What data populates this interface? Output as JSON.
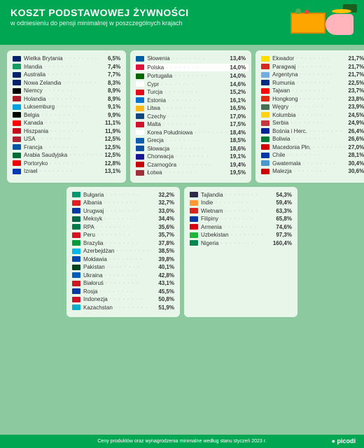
{
  "header": {
    "title": "KOSZT PODSTAWOWEJ ŻYWNOŚCI",
    "subtitle": "w odniesieniu do pensji minimalnej\nw poszczególnych krajach"
  },
  "footer": {
    "text": "Ceny produktów oraz wynagrodzenia minimalne według stanu styczeń 2023 r.",
    "logo": "picodi"
  },
  "panels": [
    [
      {
        "n": "Wielka Brytania",
        "v": "6,5%",
        "f": "#012169"
      },
      {
        "n": "Irlandia",
        "v": "7,4%",
        "f": "#169b62"
      },
      {
        "n": "Australia",
        "v": "7,7%",
        "f": "#012169"
      },
      {
        "n": "Nowa Zelandia",
        "v": "8,3%",
        "f": "#012169"
      },
      {
        "n": "Niemcy",
        "v": "8,9%",
        "f": "#000"
      },
      {
        "n": "Holandia",
        "v": "8,9%",
        "f": "#ae1c28"
      },
      {
        "n": "Luksemburg",
        "v": "9,1%",
        "f": "#00a1de"
      },
      {
        "n": "Belgia",
        "v": "9,9%",
        "f": "#000"
      },
      {
        "n": "Kanada",
        "v": "11,1%",
        "f": "#f00"
      },
      {
        "n": "Hiszpania",
        "v": "11,9%",
        "f": "#c60b1e"
      },
      {
        "n": "USA",
        "v": "12,5%",
        "f": "#b22234"
      },
      {
        "n": "Francja",
        "v": "12,5%",
        "f": "#0055a4"
      },
      {
        "n": "Arabia Saudyjska",
        "v": "12,5%",
        "f": "#006c35"
      },
      {
        "n": "Portoryko",
        "v": "12,8%",
        "f": "#ed0000"
      },
      {
        "n": "Izrael",
        "v": "13,1%",
        "f": "#0038b8"
      }
    ],
    [
      {
        "n": "Słowenia",
        "v": "13,4%",
        "f": "#005da4"
      },
      {
        "n": "Polska",
        "v": "14,0%",
        "f": "#dc143c",
        "hl": true
      },
      {
        "n": "Portugalia",
        "v": "14,0%",
        "f": "#006600"
      },
      {
        "n": "Cypr",
        "v": "14,6%",
        "f": "#fff"
      },
      {
        "n": "Turcja",
        "v": "15,2%",
        "f": "#e30a17"
      },
      {
        "n": "Estonia",
        "v": "16,1%",
        "f": "#0072ce"
      },
      {
        "n": "Litwa",
        "v": "16,5%",
        "f": "#fdb913"
      },
      {
        "n": "Czechy",
        "v": "17,0%",
        "f": "#11457e"
      },
      {
        "n": "Malta",
        "v": "17,5%",
        "f": "#cf142b"
      },
      {
        "n": "Korea Południowa",
        "v": "18,4%",
        "f": "#fff"
      },
      {
        "n": "Grecja",
        "v": "18,5%",
        "f": "#0d5eaf"
      },
      {
        "n": "Słowacja",
        "v": "18,6%",
        "f": "#0b4ea2"
      },
      {
        "n": "Chorwacja",
        "v": "19,1%",
        "f": "#171796"
      },
      {
        "n": "Czarnogóra",
        "v": "19,4%",
        "f": "#c40308"
      },
      {
        "n": "Łotwa",
        "v": "19,5%",
        "f": "#9e3039"
      }
    ],
    [
      {
        "n": "Ekwador",
        "v": "21,7%",
        "f": "#ffdd00"
      },
      {
        "n": "Paragwaj",
        "v": "21,7%",
        "f": "#d52b1e"
      },
      {
        "n": "Argentyna",
        "v": "21,7%",
        "f": "#74acdf"
      },
      {
        "n": "Rumunia",
        "v": "22,5%",
        "f": "#002b7f"
      },
      {
        "n": "Tajwan",
        "v": "23,7%",
        "f": "#fe0000"
      },
      {
        "n": "Hongkong",
        "v": "23,8%",
        "f": "#de2910"
      },
      {
        "n": "Węgry",
        "v": "23,9%",
        "f": "#477050"
      },
      {
        "n": "Kolumbia",
        "v": "24,5%",
        "f": "#fcd116"
      },
      {
        "n": "Serbia",
        "v": "24,9%",
        "f": "#c6363c"
      },
      {
        "n": "Bośnia i Herc.",
        "v": "26,4%",
        "f": "#002395"
      },
      {
        "n": "Boliwia",
        "v": "26,6%",
        "f": "#007934"
      },
      {
        "n": "Macedonia Płn.",
        "v": "27,0%",
        "f": "#d20000"
      },
      {
        "n": "Chile",
        "v": "28,1%",
        "f": "#0039a6"
      },
      {
        "n": "Gwatemala",
        "v": "30,4%",
        "f": "#4997d0"
      },
      {
        "n": "Malezja",
        "v": "30,6%",
        "f": "#cc0001"
      }
    ],
    [
      {
        "n": "Bułgaria",
        "v": "32,2%",
        "f": "#00966e"
      },
      {
        "n": "Albania",
        "v": "32,7%",
        "f": "#e41e20"
      },
      {
        "n": "Urugwaj",
        "v": "33,0%",
        "f": "#0038a8"
      },
      {
        "n": "Meksyk",
        "v": "34,4%",
        "f": "#006847"
      },
      {
        "n": "RPA",
        "v": "35,6%",
        "f": "#007a4d"
      },
      {
        "n": "Peru",
        "v": "35,7%",
        "f": "#d91023"
      },
      {
        "n": "Brazylia",
        "v": "37,8%",
        "f": "#009c3b"
      },
      {
        "n": "Azerbejdżan",
        "v": "38,5%",
        "f": "#00b9e4"
      },
      {
        "n": "Mołdawia",
        "v": "39,8%",
        "f": "#0046ae"
      },
      {
        "n": "Pakistan",
        "v": "40,1%",
        "f": "#01411c"
      },
      {
        "n": "Ukraina",
        "v": "42,8%",
        "f": "#005bbb"
      },
      {
        "n": "Białoruś",
        "v": "43,1%",
        "f": "#ce1720"
      },
      {
        "n": "Rosja",
        "v": "45,5%",
        "f": "#0039a6"
      },
      {
        "n": "Indonezja",
        "v": "50,8%",
        "f": "#ce1126"
      },
      {
        "n": "Kazachstan",
        "v": "51,9%",
        "f": "#00afca"
      }
    ],
    [
      {
        "n": "Tajlandia",
        "v": "54,3%",
        "f": "#2d2a4a"
      },
      {
        "n": "Indie",
        "v": "59,4%",
        "f": "#ff9933"
      },
      {
        "n": "Wietnam",
        "v": "63,3%",
        "f": "#da251d"
      },
      {
        "n": "Filipiny",
        "v": "65,8%",
        "f": "#0038a8"
      },
      {
        "n": "Armenia",
        "v": "74,6%",
        "f": "#d90012"
      },
      {
        "n": "Uzbekistan",
        "v": "97,3%",
        "f": "#1eb53a"
      },
      {
        "n": "Nigeria",
        "v": "160,4%",
        "f": "#008751"
      }
    ]
  ],
  "layout": {
    "row1": [
      0,
      1,
      2
    ],
    "row2": [
      3,
      4
    ]
  },
  "colors": {
    "bg": "#8cc99f",
    "panel": "#e8f5e9",
    "accent": "#00a651"
  }
}
